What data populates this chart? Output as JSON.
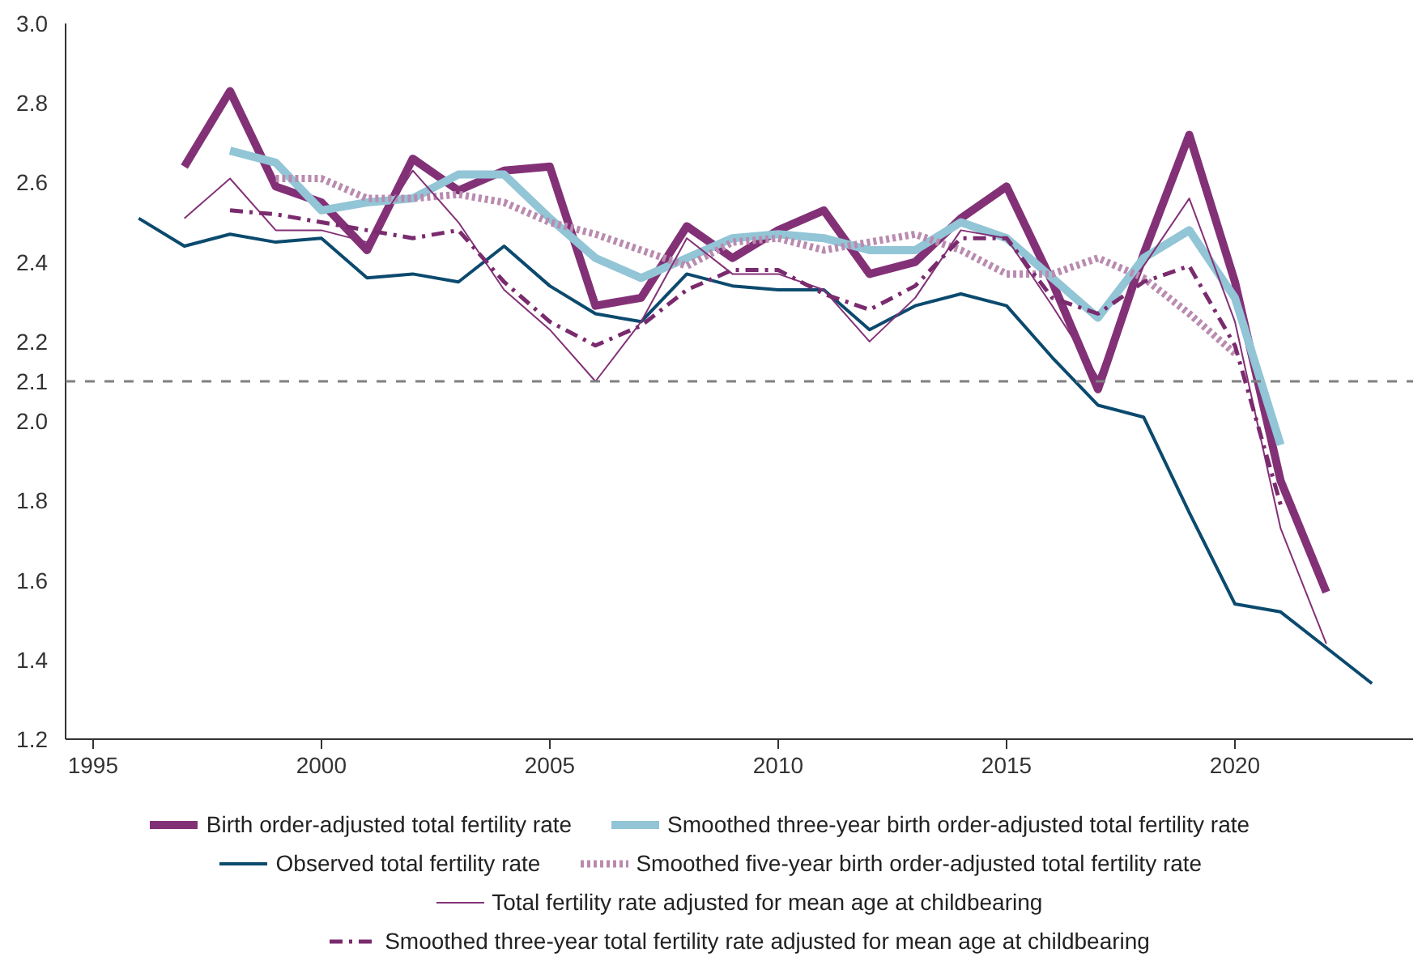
{
  "chart_data": {
    "type": "line",
    "xlim": [
      1994.4,
      2023.9
    ],
    "ylim": [
      1.2,
      3.0
    ],
    "xticks": [
      1995,
      2000,
      2005,
      2010,
      2015,
      2020
    ],
    "yticks": [
      1.2,
      1.4,
      1.6,
      1.8,
      {
        "value": 2,
        "label": "2.0"
      },
      2.1,
      2.2,
      2.4,
      2.6,
      2.8,
      {
        "value": 3,
        "label": "3.0"
      }
    ],
    "grid": false,
    "legend": "bottom",
    "marker": "none",
    "ref_lines": [
      {
        "axis": "y",
        "value": 2.1,
        "color": "#808080",
        "line_style": "dashed"
      }
    ],
    "series": [
      {
        "name": "Birth order-adjusted total fertility rate",
        "color": "#833177",
        "line_style": "solid",
        "x": [
          1997,
          1998,
          1999,
          2000,
          2001,
          2002,
          2003,
          2004,
          2005,
          2006,
          2007,
          2008,
          2009,
          2010,
          2011,
          2012,
          2013,
          2014,
          2015,
          2016,
          2017,
          2018,
          2019,
          2020,
          2021,
          2022
        ],
        "values": [
          2.64,
          2.83,
          2.59,
          2.55,
          2.43,
          2.66,
          2.58,
          2.63,
          2.64,
          2.29,
          2.31,
          2.49,
          2.41,
          2.48,
          2.53,
          2.37,
          2.4,
          2.51,
          2.59,
          2.35,
          2.08,
          2.42,
          2.72,
          2.35,
          1.85,
          1.57
        ]
      },
      {
        "name": "Smoothed three-year birth order-adjusted total fertility rate",
        "color": "#92c5d6",
        "line_style": "solid",
        "x": [
          1998,
          1999,
          2000,
          2001,
          2002,
          2003,
          2004,
          2005,
          2006,
          2007,
          2008,
          2009,
          2010,
          2011,
          2012,
          2013,
          2014,
          2015,
          2016,
          2017,
          2018,
          2019,
          2020,
          2021
        ],
        "values": [
          2.68,
          2.65,
          2.53,
          2.55,
          2.56,
          2.62,
          2.62,
          2.51,
          2.41,
          2.36,
          2.41,
          2.46,
          2.47,
          2.46,
          2.43,
          2.43,
          2.5,
          2.46,
          2.36,
          2.26,
          2.41,
          2.48,
          2.31,
          1.94
        ]
      },
      {
        "name": "Observed total fertility rate",
        "color": "#0b4a6e",
        "line_style": "solid",
        "x": [
          1996,
          1997,
          1998,
          1999,
          2000,
          2001,
          2002,
          2003,
          2004,
          2005,
          2006,
          2007,
          2008,
          2009,
          2010,
          2011,
          2012,
          2013,
          2014,
          2015,
          2016,
          2017,
          2018,
          2019,
          2020,
          2021,
          2022,
          2023
        ],
        "values": [
          2.51,
          2.44,
          2.47,
          2.45,
          2.46,
          2.36,
          2.37,
          2.35,
          2.44,
          2.34,
          2.27,
          2.25,
          2.37,
          2.34,
          2.33,
          2.33,
          2.23,
          2.29,
          2.32,
          2.29,
          2.16,
          2.04,
          2.01,
          1.77,
          1.54,
          1.52,
          1.43,
          1.34
        ]
      },
      {
        "name": "Smoothed five-year birth order-adjusted total fertility rate",
        "color": "#b98bb0",
        "line_style": "dotted",
        "x": [
          1999,
          2000,
          2001,
          2002,
          2003,
          2004,
          2005,
          2006,
          2007,
          2008,
          2009,
          2010,
          2011,
          2012,
          2013,
          2014,
          2015,
          2016,
          2017,
          2018,
          2019,
          2020
        ],
        "values": [
          2.61,
          2.61,
          2.56,
          2.56,
          2.57,
          2.55,
          2.5,
          2.47,
          2.43,
          2.39,
          2.45,
          2.46,
          2.43,
          2.45,
          2.47,
          2.43,
          2.37,
          2.37,
          2.41,
          2.36,
          2.27,
          2.17
        ]
      },
      {
        "name": "Total fertility rate adjusted for mean age at childbearing",
        "color": "#833177",
        "line_style": "solid",
        "x": [
          1997,
          1998,
          1999,
          2000,
          2001,
          2002,
          2003,
          2004,
          2005,
          2006,
          2007,
          2008,
          2009,
          2010,
          2011,
          2012,
          2013,
          2014,
          2015,
          2016,
          2017,
          2018,
          2019,
          2020,
          2021,
          2022
        ],
        "values": [
          2.51,
          2.61,
          2.48,
          2.48,
          2.45,
          2.63,
          2.5,
          2.33,
          2.23,
          2.1,
          2.25,
          2.46,
          2.37,
          2.37,
          2.33,
          2.2,
          2.31,
          2.48,
          2.46,
          2.29,
          2.11,
          2.39,
          2.56,
          2.25,
          1.73,
          1.44
        ]
      },
      {
        "name": "Smoothed three-year total fertility rate adjusted for mean age at childbearing",
        "color": "#7a2b6e",
        "line_style": "dashdot",
        "x": [
          1998,
          1999,
          2000,
          2001,
          2002,
          2003,
          2004,
          2005,
          2006,
          2007,
          2008,
          2009,
          2010,
          2011,
          2012,
          2013,
          2014,
          2015,
          2016,
          2017,
          2018,
          2019,
          2020,
          2021
        ],
        "values": [
          2.53,
          2.52,
          2.5,
          2.48,
          2.46,
          2.48,
          2.35,
          2.25,
          2.19,
          2.24,
          2.33,
          2.38,
          2.38,
          2.32,
          2.28,
          2.34,
          2.46,
          2.46,
          2.31,
          2.27,
          2.35,
          2.39,
          2.19,
          1.79
        ]
      }
    ]
  }
}
